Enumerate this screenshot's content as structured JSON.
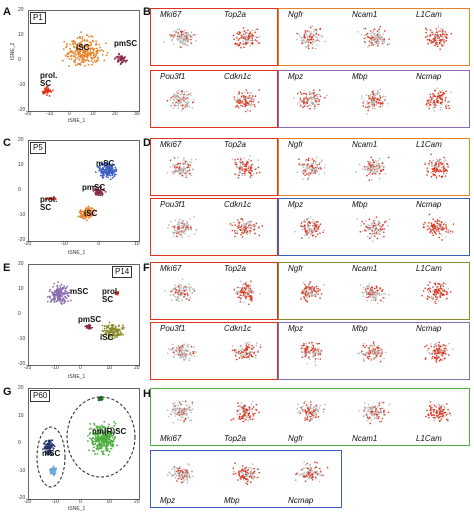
{
  "panels": {
    "A": {
      "letter": "A",
      "stage": "P1",
      "clusters": [
        {
          "id": "a-isc",
          "text": "iSC"
        },
        {
          "id": "a-pmsc",
          "text": "pmSC"
        },
        {
          "id": "a-prol",
          "text": "prol.\nSC"
        }
      ],
      "xticks": [
        "-20",
        "-10",
        "0",
        "10",
        "20",
        "30"
      ],
      "yticks": [
        "20",
        "10",
        "0",
        "-10",
        "-20"
      ]
    },
    "C": {
      "letter": "C",
      "stage": "P5",
      "clusters": [
        {
          "id": "c-msc",
          "text": "mSC"
        },
        {
          "id": "c-pmsc",
          "text": "pmSC"
        },
        {
          "id": "c-prol",
          "text": "prol.\nSC"
        },
        {
          "id": "c-isc",
          "text": "iSC"
        }
      ],
      "xticks": [
        "-20",
        "-10",
        "0",
        "10"
      ],
      "yticks": [
        "20",
        "10",
        "0",
        "-10",
        "-20"
      ]
    },
    "E": {
      "letter": "E",
      "stage": "P14",
      "clusters": [
        {
          "id": "e-msc",
          "text": "mSC"
        },
        {
          "id": "e-prol",
          "text": "prol.\nSC"
        },
        {
          "id": "e-pmsc",
          "text": "pmSC"
        },
        {
          "id": "e-isc",
          "text": "iSC"
        }
      ],
      "xticks": [
        "-20",
        "-10",
        "0",
        "10",
        "20"
      ],
      "yticks": [
        "20",
        "10",
        "0",
        "-10",
        "-20"
      ]
    },
    "G": {
      "letter": "G",
      "stage": "P60",
      "clusters": [
        {
          "id": "g-nmrsc",
          "text": "nm(R)SC"
        },
        {
          "id": "g-msc",
          "text": "mSC"
        }
      ],
      "xticks": [
        "-20",
        "-10",
        "0",
        "10",
        "20"
      ],
      "yticks": [
        "20",
        "10",
        "0",
        "-10",
        "-20"
      ]
    }
  },
  "axis": {
    "x": "tSNE_1",
    "y": "tSNE_2"
  },
  "genes": {
    "B": {
      "letter": "B",
      "row1": [
        "Mki67",
        "Top2a",
        "Ngfr",
        "Ncam1",
        "L1Cam"
      ],
      "row2": [
        "Pou3f1",
        "Cdkn1c",
        "Mpz",
        "Mbp",
        "Ncmap"
      ]
    },
    "D": {
      "letter": "D",
      "row1": [
        "Mki67",
        "Top2a",
        "Ngfr",
        "Ncam1",
        "L1Cam"
      ],
      "row2": [
        "Pou3f1",
        "Cdkn1c",
        "Mpz",
        "Mbp",
        "Ncmap"
      ]
    },
    "F": {
      "letter": "F",
      "row1": [
        "Mki67",
        "Top2a",
        "Ngfr",
        "Ncam1",
        "L1Cam"
      ],
      "row2": [
        "Pou3f1",
        "Cdkn1c",
        "Mpz",
        "Mbp",
        "Ncmap"
      ]
    },
    "H": {
      "letter": "H",
      "row1": [
        "Mki67",
        "Top2a",
        "Ngfr",
        "Ncam1",
        "L1Cam"
      ],
      "row2": [
        "Mpz",
        "Mbp",
        "Ncmap"
      ]
    }
  },
  "colors": {
    "orange": "#e8822a",
    "purple": "#8a6cb0",
    "green": "#4caf3f",
    "blue": "#3a5fc4",
    "red": "#e0341c",
    "grey": "#b8b8b8",
    "maroon": "#8b2a4a",
    "olive": "#8a8a2a",
    "darkblue": "#24336b",
    "lightblue": "#6aa6e0",
    "darkgreen": "#1f6b1f"
  }
}
